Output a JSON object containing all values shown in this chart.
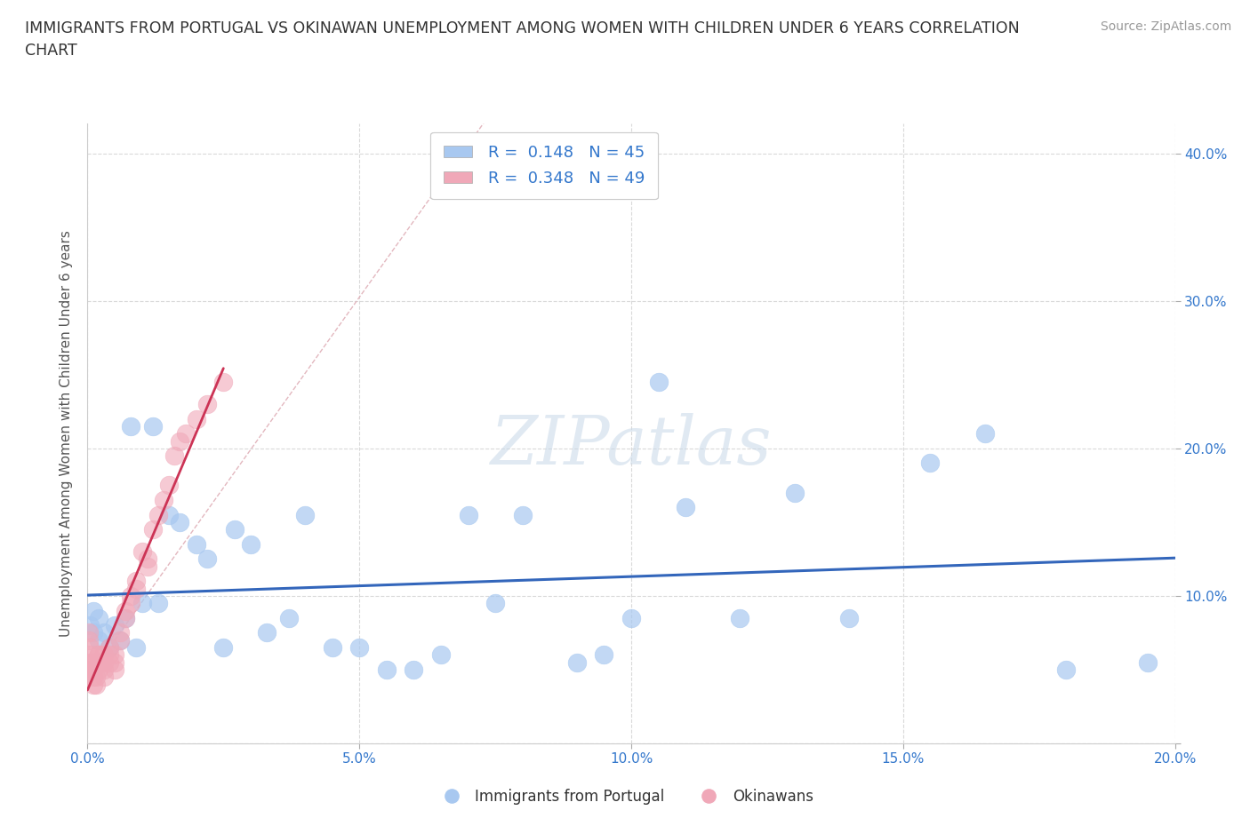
{
  "title": "IMMIGRANTS FROM PORTUGAL VS OKINAWAN UNEMPLOYMENT AMONG WOMEN WITH CHILDREN UNDER 6 YEARS CORRELATION\nCHART",
  "source": "Source: ZipAtlas.com",
  "ylabel": "Unemployment Among Women with Children Under 6 years",
  "watermark": "ZIPatlas",
  "xlim": [
    0.0,
    0.2
  ],
  "ylim": [
    0.0,
    0.42
  ],
  "xticks": [
    0.0,
    0.05,
    0.1,
    0.15,
    0.2
  ],
  "yticks": [
    0.0,
    0.1,
    0.2,
    0.3,
    0.4
  ],
  "xtick_labels": [
    "0.0%",
    "5.0%",
    "10.0%",
    "15.0%",
    "20.0%"
  ],
  "ytick_labels_right": [
    "",
    "10.0%",
    "20.0%",
    "30.0%",
    "40.0%"
  ],
  "blue_color": "#a8c8f0",
  "pink_color": "#f0a8b8",
  "trend_blue_color": "#3366bb",
  "trend_pink_color": "#cc3355",
  "diag_color": "#e0b0b8",
  "grid_color": "#d0d0d0",
  "R_blue": 0.148,
  "N_blue": 45,
  "R_pink": 0.348,
  "N_pink": 49,
  "legend_label_blue": "Immigrants from Portugal",
  "legend_label_pink": "Okinawans",
  "blue_scatter_x": [
    0.0005,
    0.001,
    0.001,
    0.002,
    0.002,
    0.003,
    0.004,
    0.005,
    0.006,
    0.007,
    0.008,
    0.009,
    0.01,
    0.012,
    0.013,
    0.015,
    0.017,
    0.02,
    0.022,
    0.025,
    0.027,
    0.03,
    0.033,
    0.037,
    0.04,
    0.045,
    0.05,
    0.055,
    0.06,
    0.065,
    0.07,
    0.075,
    0.08,
    0.09,
    0.095,
    0.1,
    0.105,
    0.11,
    0.12,
    0.13,
    0.14,
    0.155,
    0.165,
    0.18,
    0.195
  ],
  "blue_scatter_y": [
    0.08,
    0.09,
    0.075,
    0.085,
    0.07,
    0.075,
    0.065,
    0.08,
    0.07,
    0.085,
    0.215,
    0.065,
    0.095,
    0.215,
    0.095,
    0.155,
    0.15,
    0.135,
    0.125,
    0.065,
    0.145,
    0.135,
    0.075,
    0.085,
    0.155,
    0.065,
    0.065,
    0.05,
    0.05,
    0.06,
    0.155,
    0.095,
    0.155,
    0.055,
    0.06,
    0.085,
    0.245,
    0.16,
    0.085,
    0.17,
    0.085,
    0.19,
    0.21,
    0.05,
    0.055
  ],
  "pink_scatter_x": [
    0.0002,
    0.0003,
    0.0004,
    0.0005,
    0.0006,
    0.0007,
    0.0008,
    0.0009,
    0.001,
    0.001,
    0.001,
    0.001,
    0.0015,
    0.0015,
    0.002,
    0.002,
    0.002,
    0.002,
    0.003,
    0.003,
    0.003,
    0.003,
    0.004,
    0.004,
    0.004,
    0.005,
    0.005,
    0.005,
    0.006,
    0.006,
    0.007,
    0.007,
    0.008,
    0.008,
    0.009,
    0.009,
    0.01,
    0.011,
    0.011,
    0.012,
    0.013,
    0.014,
    0.015,
    0.016,
    0.017,
    0.018,
    0.02,
    0.022,
    0.025
  ],
  "pink_scatter_y": [
    0.075,
    0.07,
    0.065,
    0.06,
    0.055,
    0.055,
    0.05,
    0.05,
    0.045,
    0.055,
    0.05,
    0.04,
    0.045,
    0.04,
    0.06,
    0.06,
    0.055,
    0.05,
    0.06,
    0.055,
    0.05,
    0.045,
    0.065,
    0.06,
    0.055,
    0.06,
    0.055,
    0.05,
    0.075,
    0.07,
    0.09,
    0.085,
    0.1,
    0.095,
    0.11,
    0.105,
    0.13,
    0.125,
    0.12,
    0.145,
    0.155,
    0.165,
    0.175,
    0.195,
    0.205,
    0.21,
    0.22,
    0.23,
    0.245
  ],
  "background_color": "#ffffff",
  "title_fontsize": 12.5,
  "axis_fontsize": 11,
  "tick_fontsize": 11,
  "source_fontsize": 10,
  "legend_fontsize": 13,
  "watermark_fontsize": 55
}
